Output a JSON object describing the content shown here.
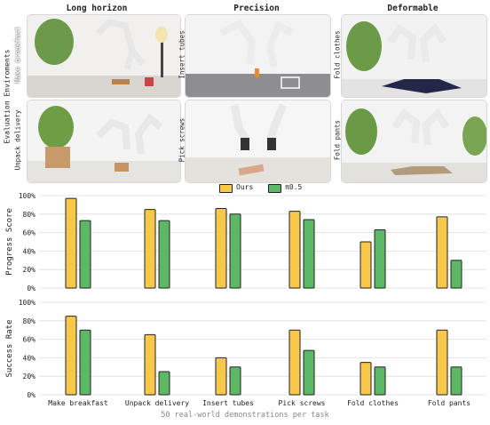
{
  "columns": [
    "Long horizon",
    "Precision",
    "Deformable"
  ],
  "side_label": "Evaluation Enviroments",
  "tasks_top": [
    "Make breakfast",
    "Insert tubes",
    "Fold clothes"
  ],
  "tasks_bottom": [
    "Unpack delivery",
    "Pick screws",
    "Fold pants"
  ],
  "footer": "50 real-world demonstrations per task",
  "colors": {
    "ours": "#f7c84a",
    "pi": "#5cb865",
    "bar_stroke": "#222222",
    "grid": "#dddddd"
  },
  "chart_data": [
    {
      "type": "bar",
      "ylabel": "Progress Score",
      "ylim": [
        0,
        100
      ],
      "yticks": [
        "0%",
        "20%",
        "40%",
        "60%",
        "80%",
        "100%"
      ],
      "categories": [
        "Make breakfast",
        "Unpack delivery",
        "Insert tubes",
        "Pick screws",
        "Fold clothes",
        "Fold pants"
      ],
      "series": [
        {
          "name": "Ours",
          "values": [
            97,
            85,
            86,
            83,
            50,
            77
          ]
        },
        {
          "name": "π0.5",
          "values": [
            73,
            73,
            80,
            74,
            63,
            30
          ]
        }
      ],
      "legend": "top-center",
      "grid": true
    },
    {
      "type": "bar",
      "ylabel": "Success Rate",
      "ylim": [
        0,
        100
      ],
      "yticks": [
        "0%",
        "20%",
        "40%",
        "60%",
        "80%",
        "100%"
      ],
      "categories": [
        "Make breakfast",
        "Unpack delivery",
        "Insert tubes",
        "Pick screws",
        "Fold clothes",
        "Fold pants"
      ],
      "series": [
        {
          "name": "Ours",
          "values": [
            85,
            65,
            40,
            70,
            35,
            70
          ]
        },
        {
          "name": "π0.5",
          "values": [
            70,
            25,
            30,
            48,
            30,
            30
          ]
        }
      ],
      "legend": "top-center",
      "grid": true
    }
  ]
}
